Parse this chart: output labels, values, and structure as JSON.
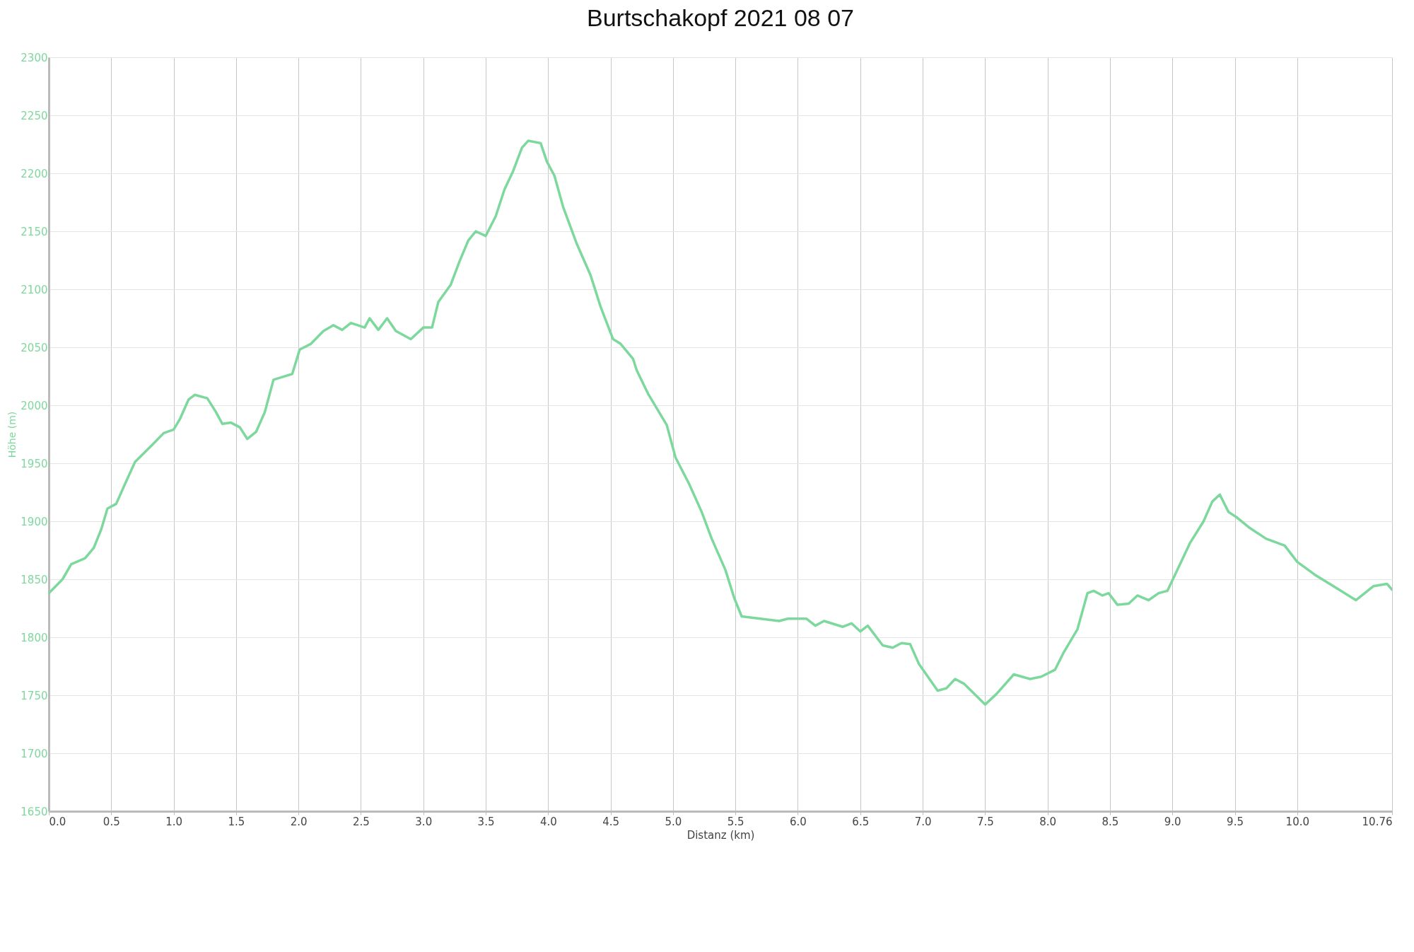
{
  "chart_data": {
    "type": "line",
    "title": "Burtschakopf 2021 08 07",
    "xlabel": "Distanz (km)",
    "ylabel": "Höhe (m)",
    "x": [
      0,
      0.11,
      0.18,
      0.29,
      0.36,
      0.42,
      0.47,
      0.54,
      0.61,
      0.69,
      0.83,
      0.92,
      1.0,
      1.05,
      1.12,
      1.17,
      1.27,
      1.34,
      1.39,
      1.46,
      1.53,
      1.59,
      1.66,
      1.73,
      1.8,
      1.86,
      1.95,
      2.01,
      2.1,
      2.2,
      2.28,
      2.35,
      2.42,
      2.53,
      2.57,
      2.64,
      2.71,
      2.78,
      2.9,
      3.0,
      3.07,
      3.12,
      3.22,
      3.29,
      3.36,
      3.42,
      3.5,
      3.58,
      3.65,
      3.72,
      3.79,
      3.84,
      3.94,
      3.99,
      4.05,
      4.12,
      4.23,
      4.34,
      4.42,
      4.52,
      4.58,
      4.68,
      4.71,
      4.8,
      4.95,
      5.02,
      5.13,
      5.23,
      5.31,
      5.42,
      5.49,
      5.55,
      5.85,
      5.92,
      6.07,
      6.14,
      6.21,
      6.36,
      6.43,
      6.5,
      6.56,
      6.68,
      6.76,
      6.83,
      6.9,
      6.97,
      7.12,
      7.19,
      7.26,
      7.33,
      7.5,
      7.59,
      7.73,
      7.86,
      7.95,
      8.06,
      8.13,
      8.24,
      8.32,
      8.37,
      8.44,
      8.49,
      8.56,
      8.65,
      8.72,
      8.81,
      8.89,
      8.96,
      9.07,
      9.14,
      9.25,
      9.32,
      9.38,
      9.45,
      9.52,
      9.61,
      9.75,
      9.9,
      10.0,
      10.14,
      10.29,
      10.47,
      10.61,
      10.72,
      10.76
    ],
    "series": [
      {
        "color": "#7dd89d",
        "values": [
          1838,
          1850,
          1863,
          1868,
          1877,
          1893,
          1911,
          1915,
          1932,
          1951,
          1966,
          1976,
          1979,
          1988,
          2005,
          2009,
          2006,
          1994,
          1984,
          1985,
          1981,
          1971,
          1977,
          1994,
          2022,
          2024,
          2027,
          2048,
          2053,
          2064,
          2069,
          2065,
          2071,
          2067,
          2075,
          2065,
          2075,
          2064,
          2057,
          2067,
          2067,
          2089,
          2104,
          2124,
          2142,
          2150,
          2146,
          2163,
          2186,
          2202,
          2222,
          2228,
          2226,
          2210,
          2198,
          2171,
          2139,
          2112,
          2085,
          2057,
          2053,
          2040,
          2030,
          2010,
          1983,
          1955,
          1932,
          1908,
          1885,
          1858,
          1834,
          1818,
          1814,
          1816,
          1816,
          1810,
          1814,
          1809,
          1812,
          1805,
          1810,
          1793,
          1791,
          1795,
          1794,
          1777,
          1754,
          1756,
          1764,
          1760,
          1742,
          1751,
          1768,
          1764,
          1766,
          1772,
          1787,
          1807,
          1838,
          1840,
          1836,
          1838,
          1828,
          1829,
          1836,
          1832,
          1838,
          1840,
          1865,
          1881,
          1900,
          1917,
          1923,
          1908,
          1903,
          1895,
          1885,
          1879,
          1865,
          1854,
          1844,
          1832,
          1844,
          1846,
          1841
        ]
      }
    ],
    "xlim": [
      0,
      10.76
    ],
    "xticks": [
      {
        "value": 0,
        "label": "0.0"
      },
      0.5,
      {
        "value": 1,
        "label": "1.0"
      },
      1.5,
      {
        "value": 2,
        "label": "2.0"
      },
      2.5,
      {
        "value": 3,
        "label": "3.0"
      },
      3.5,
      {
        "value": 4,
        "label": "4.0"
      },
      4.5,
      {
        "value": 5,
        "label": "5.0"
      },
      5.5,
      {
        "value": 6,
        "label": "6.0"
      },
      6.5,
      {
        "value": 7,
        "label": "7.0"
      },
      7.5,
      {
        "value": 8,
        "label": "8.0"
      },
      8.5,
      {
        "value": 9,
        "label": "9.0"
      },
      9.5,
      {
        "value": 10,
        "label": "10.0"
      },
      10.76
    ],
    "ylim": [
      1650,
      2300
    ],
    "yticks": [
      1650,
      1700,
      1750,
      1800,
      1850,
      1900,
      1950,
      2000,
      2050,
      2100,
      2150,
      2200,
      2250,
      2300
    ],
    "grid": true,
    "marker": "none",
    "line_style": "solid"
  }
}
